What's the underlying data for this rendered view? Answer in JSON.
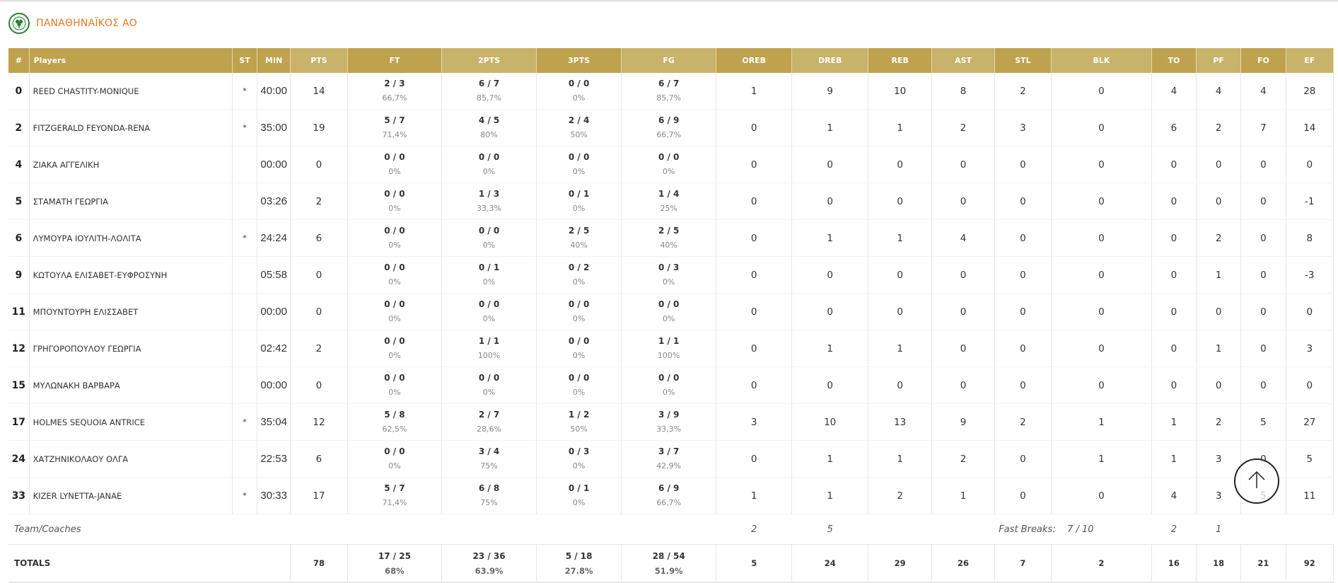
{
  "team": {
    "name": "ΠΑΝΑΘΗΝΑΪΚΟΣ ΑΟ",
    "brand_color": "#e8791f",
    "logo_icon": "clover-crest-icon"
  },
  "columns": [
    "#",
    "Players",
    "ST",
    "MIN",
    "PTS",
    "FT",
    "2PTS",
    "3PTS",
    "FG",
    "OREB",
    "DREB",
    "REB",
    "AST",
    "STL",
    "BLK",
    "TO",
    "PF",
    "FO",
    "EF"
  ],
  "players": [
    {
      "num": "0",
      "name": "REED CHASTITY-MONIQUE",
      "st": "*",
      "min": "40:00",
      "pts": "14",
      "ft": "2 / 3",
      "ft_pct": "66,7%",
      "p2": "6 / 7",
      "p2_pct": "85,7%",
      "p3": "0 / 0",
      "p3_pct": "0%",
      "fg": "6 / 7",
      "fg_pct": "85,7%",
      "oreb": "1",
      "dreb": "9",
      "reb": "10",
      "ast": "8",
      "stl": "2",
      "blk": "0",
      "to": "4",
      "pf": "4",
      "fo": "4",
      "ef": "28"
    },
    {
      "num": "2",
      "name": "FITZGERALD FEYONDA-RENA",
      "st": "*",
      "min": "35:00",
      "pts": "19",
      "ft": "5 / 7",
      "ft_pct": "71,4%",
      "p2": "4 / 5",
      "p2_pct": "80%",
      "p3": "2 / 4",
      "p3_pct": "50%",
      "fg": "6 / 9",
      "fg_pct": "66,7%",
      "oreb": "0",
      "dreb": "1",
      "reb": "1",
      "ast": "2",
      "stl": "3",
      "blk": "0",
      "to": "6",
      "pf": "2",
      "fo": "7",
      "ef": "14"
    },
    {
      "num": "4",
      "name": "ΖΙΑΚΑ ΑΓΓΕΛΙΚΗ",
      "st": "",
      "min": "00:00",
      "pts": "0",
      "ft": "0 / 0",
      "ft_pct": "0%",
      "p2": "0 / 0",
      "p2_pct": "0%",
      "p3": "0 / 0",
      "p3_pct": "0%",
      "fg": "0 / 0",
      "fg_pct": "0%",
      "oreb": "0",
      "dreb": "0",
      "reb": "0",
      "ast": "0",
      "stl": "0",
      "blk": "0",
      "to": "0",
      "pf": "0",
      "fo": "0",
      "ef": "0"
    },
    {
      "num": "5",
      "name": "ΣΤΑΜΑΤΗ ΓΕΩΡΓΙΑ",
      "st": "",
      "min": "03:26",
      "pts": "2",
      "ft": "0 / 0",
      "ft_pct": "0%",
      "p2": "1 / 3",
      "p2_pct": "33,3%",
      "p3": "0 / 1",
      "p3_pct": "0%",
      "fg": "1 / 4",
      "fg_pct": "25%",
      "oreb": "0",
      "dreb": "0",
      "reb": "0",
      "ast": "0",
      "stl": "0",
      "blk": "0",
      "to": "0",
      "pf": "0",
      "fo": "0",
      "ef": "-1"
    },
    {
      "num": "6",
      "name": "ΛΥΜΟΥΡΑ ΙΟΥΛΙΤΗ-ΛΟΛΙΤΑ",
      "st": "*",
      "min": "24:24",
      "pts": "6",
      "ft": "0 / 0",
      "ft_pct": "0%",
      "p2": "0 / 0",
      "p2_pct": "0%",
      "p3": "2 / 5",
      "p3_pct": "40%",
      "fg": "2 / 5",
      "fg_pct": "40%",
      "oreb": "0",
      "dreb": "1",
      "reb": "1",
      "ast": "4",
      "stl": "0",
      "blk": "0",
      "to": "0",
      "pf": "2",
      "fo": "0",
      "ef": "8"
    },
    {
      "num": "9",
      "name": "ΚΩΤΟΥΛΑ ΕΛΙΣΑΒΕΤ-ΕΥΦΡΟΣΥΝΗ",
      "st": "",
      "min": "05:58",
      "pts": "0",
      "ft": "0 / 0",
      "ft_pct": "0%",
      "p2": "0 / 1",
      "p2_pct": "0%",
      "p3": "0 / 2",
      "p3_pct": "0%",
      "fg": "0 / 3",
      "fg_pct": "0%",
      "oreb": "0",
      "dreb": "0",
      "reb": "0",
      "ast": "0",
      "stl": "0",
      "blk": "0",
      "to": "0",
      "pf": "1",
      "fo": "0",
      "ef": "-3"
    },
    {
      "num": "11",
      "name": "ΜΠΟΥΝΤΟΥΡΗ ΕΛΙΣΣΑΒΕΤ",
      "st": "",
      "min": "00:00",
      "pts": "0",
      "ft": "0 / 0",
      "ft_pct": "0%",
      "p2": "0 / 0",
      "p2_pct": "0%",
      "p3": "0 / 0",
      "p3_pct": "0%",
      "fg": "0 / 0",
      "fg_pct": "0%",
      "oreb": "0",
      "dreb": "0",
      "reb": "0",
      "ast": "0",
      "stl": "0",
      "blk": "0",
      "to": "0",
      "pf": "0",
      "fo": "0",
      "ef": "0"
    },
    {
      "num": "12",
      "name": "ΓΡΗΓΟΡΟΠΟΥΛΟΥ ΓΕΩΡΓΙΑ",
      "st": "",
      "min": "02:42",
      "pts": "2",
      "ft": "0 / 0",
      "ft_pct": "0%",
      "p2": "1 / 1",
      "p2_pct": "100%",
      "p3": "0 / 0",
      "p3_pct": "0%",
      "fg": "1 / 1",
      "fg_pct": "100%",
      "oreb": "0",
      "dreb": "1",
      "reb": "1",
      "ast": "0",
      "stl": "0",
      "blk": "0",
      "to": "0",
      "pf": "1",
      "fo": "0",
      "ef": "3"
    },
    {
      "num": "15",
      "name": "ΜΥΛΩΝΑΚΗ ΒΑΡΒΑΡΑ",
      "st": "",
      "min": "00:00",
      "pts": "0",
      "ft": "0 / 0",
      "ft_pct": "0%",
      "p2": "0 / 0",
      "p2_pct": "0%",
      "p3": "0 / 0",
      "p3_pct": "0%",
      "fg": "0 / 0",
      "fg_pct": "0%",
      "oreb": "0",
      "dreb": "0",
      "reb": "0",
      "ast": "0",
      "stl": "0",
      "blk": "0",
      "to": "0",
      "pf": "0",
      "fo": "0",
      "ef": "0"
    },
    {
      "num": "17",
      "name": "HOLMES SEQUOIA ANTRICE",
      "st": "*",
      "min": "35:04",
      "pts": "12",
      "ft": "5 / 8",
      "ft_pct": "62,5%",
      "p2": "2 / 7",
      "p2_pct": "28,6%",
      "p3": "1 / 2",
      "p3_pct": "50%",
      "fg": "3 / 9",
      "fg_pct": "33,3%",
      "oreb": "3",
      "dreb": "10",
      "reb": "13",
      "ast": "9",
      "stl": "2",
      "blk": "1",
      "to": "1",
      "pf": "2",
      "fo": "5",
      "ef": "27"
    },
    {
      "num": "24",
      "name": "ΧΑΤΖΗΝΙΚΟΛΑΟΥ ΟΛΓΑ",
      "st": "",
      "min": "22:53",
      "pts": "6",
      "ft": "0 / 0",
      "ft_pct": "0%",
      "p2": "3 / 4",
      "p2_pct": "75%",
      "p3": "0 / 3",
      "p3_pct": "0%",
      "fg": "3 / 7",
      "fg_pct": "42,9%",
      "oreb": "0",
      "dreb": "1",
      "reb": "1",
      "ast": "2",
      "stl": "0",
      "blk": "1",
      "to": "1",
      "pf": "3",
      "fo": "0",
      "ef": "5"
    },
    {
      "num": "33",
      "name": "KIZER LYNETTA-JANAE",
      "st": "*",
      "min": "30:33",
      "pts": "17",
      "ft": "5 / 7",
      "ft_pct": "71,4%",
      "p2": "6 / 8",
      "p2_pct": "75%",
      "p3": "0 / 1",
      "p3_pct": "0%",
      "fg": "6 / 9",
      "fg_pct": "66,7%",
      "oreb": "1",
      "dreb": "1",
      "reb": "2",
      "ast": "1",
      "stl": "0",
      "blk": "0",
      "to": "4",
      "pf": "3",
      "fo": "5",
      "ef": "11"
    }
  ],
  "team_coaches": {
    "label": "Team/Coaches",
    "oreb": "2",
    "dreb": "5",
    "fast_breaks_label": "Fast Breaks:",
    "fast_breaks_value": "7 / 10",
    "to": "2",
    "pf": "1"
  },
  "totals": {
    "label": "TOTALS",
    "pts": "78",
    "ft": "17 / 25",
    "ft_pct": "68%",
    "p2": "23 / 36",
    "p2_pct": "63.9%",
    "p3": "5 / 18",
    "p3_pct": "27.8%",
    "fg": "28 / 54",
    "fg_pct": "51.9%",
    "oreb": "5",
    "dreb": "24",
    "reb": "29",
    "ast": "26",
    "stl": "7",
    "blk": "2",
    "to": "16",
    "pf": "18",
    "fo": "21",
    "ef": "92"
  },
  "scroll_top": {
    "icon": "arrow-up-icon"
  },
  "colors": {
    "header_dark": "#bfa24e",
    "header_light": "#c9b269"
  }
}
